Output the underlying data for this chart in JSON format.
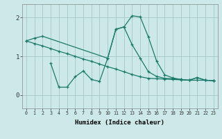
{
  "xlabel": "Humidex (Indice chaleur)",
  "bg_color": "#cce8e8",
  "grid_color": "#aacccc",
  "line_color": "#1a7a6a",
  "xlim": [
    -0.5,
    23.5
  ],
  "ylim": [
    -0.35,
    2.35
  ],
  "xticks": [
    0,
    1,
    2,
    3,
    4,
    5,
    6,
    7,
    8,
    9,
    10,
    11,
    12,
    13,
    14,
    15,
    16,
    17,
    18,
    19,
    20,
    21,
    22,
    23
  ],
  "yticks": [
    0,
    1,
    2
  ],
  "line1_x": [
    0,
    1,
    2,
    3,
    4,
    5,
    6,
    7,
    8,
    9,
    10,
    11,
    12,
    13,
    14,
    15,
    16,
    17,
    18,
    19,
    20,
    21,
    22,
    23
  ],
  "line1_y": [
    1.4,
    1.33,
    1.27,
    1.2,
    1.13,
    1.07,
    1.0,
    0.93,
    0.87,
    0.8,
    0.73,
    0.67,
    0.6,
    0.53,
    0.47,
    0.43,
    0.42,
    0.41,
    0.4,
    0.39,
    0.38,
    0.38,
    0.38,
    0.37
  ],
  "line2_x": [
    0,
    1,
    2,
    10,
    11,
    12,
    13,
    14,
    15,
    16,
    17,
    18,
    19,
    20,
    21,
    22,
    23
  ],
  "line2_y": [
    1.4,
    1.47,
    1.52,
    0.95,
    1.7,
    1.76,
    1.3,
    0.95,
    0.6,
    0.48,
    0.43,
    0.42,
    0.4,
    0.38,
    0.45,
    0.38,
    0.37
  ],
  "line3_x": [
    3,
    4,
    5,
    6,
    7,
    8,
    9,
    10,
    11,
    12,
    13,
    14,
    15,
    16,
    17,
    18,
    19,
    20,
    21,
    22,
    23
  ],
  "line3_y": [
    0.82,
    0.2,
    0.2,
    0.47,
    0.62,
    0.4,
    0.35,
    0.95,
    1.7,
    1.76,
    2.05,
    2.02,
    1.5,
    0.88,
    0.52,
    0.44,
    0.4,
    0.38,
    0.45,
    0.38,
    0.37
  ]
}
